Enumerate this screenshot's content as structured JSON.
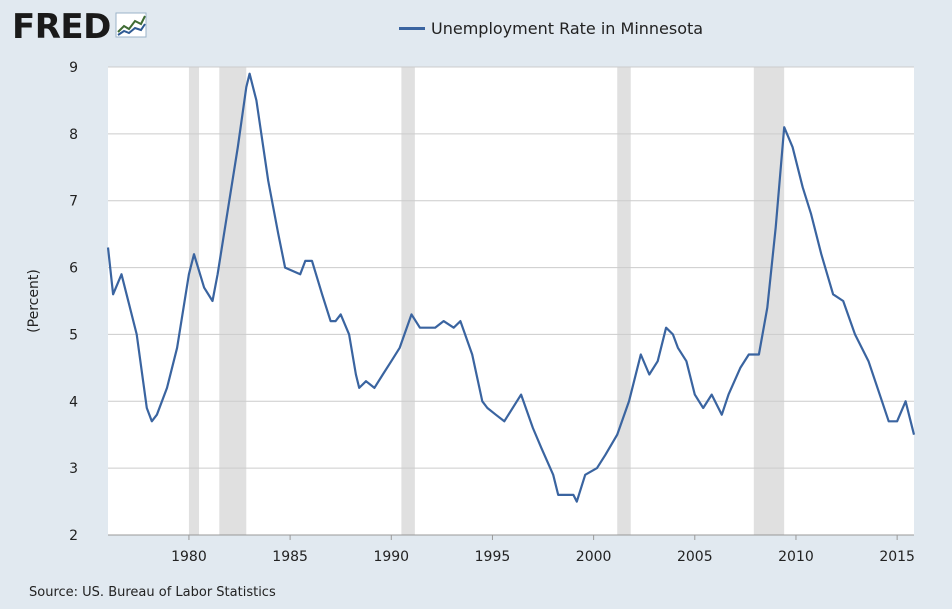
{
  "logo": {
    "text": "FRED",
    "icon": "fred-line-chart-icon"
  },
  "source": "Source: US. Bureau of Labor Statistics",
  "colors": {
    "series": "#3a64a0",
    "recession": "#e0e0e0",
    "grid": "#cccccc",
    "background": "#e1e9f0",
    "plot": "#ffffff"
  },
  "chart_data": {
    "type": "line",
    "title": "",
    "xlabel": "",
    "ylabel": "(Percent)",
    "ylim": [
      2,
      9
    ],
    "xlim": [
      "1976-01",
      "2015-11"
    ],
    "yticks": [
      2,
      3,
      4,
      5,
      6,
      7,
      8,
      9
    ],
    "xticks": [
      1980,
      1985,
      1990,
      1995,
      2000,
      2005,
      2010,
      2015
    ],
    "grid": "horizontal",
    "legend_position": "top",
    "recessions": [
      [
        "1980-01",
        "1980-07"
      ],
      [
        "1981-07",
        "1982-11"
      ],
      [
        "1990-07",
        "1991-03"
      ],
      [
        "2001-03",
        "2001-11"
      ],
      [
        "2007-12",
        "2009-06"
      ]
    ],
    "series": [
      {
        "name": "Unemployment Rate in Minnesota",
        "points": [
          [
            "1976-01",
            6.3
          ],
          [
            "1976-04",
            5.6
          ],
          [
            "1976-09",
            5.9
          ],
          [
            "1977-06",
            5.0
          ],
          [
            "1977-12",
            3.9
          ],
          [
            "1978-03",
            3.7
          ],
          [
            "1978-06",
            3.8
          ],
          [
            "1978-12",
            4.2
          ],
          [
            "1979-06",
            4.8
          ],
          [
            "1980-01",
            5.9
          ],
          [
            "1980-04",
            6.2
          ],
          [
            "1980-10",
            5.7
          ],
          [
            "1981-03",
            5.5
          ],
          [
            "1981-06",
            5.9
          ],
          [
            "1982-06",
            7.8
          ],
          [
            "1982-11",
            8.7
          ],
          [
            "1983-01",
            8.9
          ],
          [
            "1983-05",
            8.5
          ],
          [
            "1983-12",
            7.3
          ],
          [
            "1984-06",
            6.5
          ],
          [
            "1984-10",
            6.0
          ],
          [
            "1985-07",
            5.9
          ],
          [
            "1985-10",
            6.1
          ],
          [
            "1986-02",
            6.1
          ],
          [
            "1986-08",
            5.6
          ],
          [
            "1987-01",
            5.2
          ],
          [
            "1987-04",
            5.2
          ],
          [
            "1987-07",
            5.3
          ],
          [
            "1987-12",
            5.0
          ],
          [
            "1988-04",
            4.4
          ],
          [
            "1988-06",
            4.2
          ],
          [
            "1988-10",
            4.3
          ],
          [
            "1989-03",
            4.2
          ],
          [
            "1989-08",
            4.4
          ],
          [
            "1990-01",
            4.6
          ],
          [
            "1990-06",
            4.8
          ],
          [
            "1991-01",
            5.3
          ],
          [
            "1991-06",
            5.1
          ],
          [
            "1992-03",
            5.1
          ],
          [
            "1992-08",
            5.2
          ],
          [
            "1993-02",
            5.1
          ],
          [
            "1993-06",
            5.2
          ],
          [
            "1994-01",
            4.7
          ],
          [
            "1994-07",
            4.0
          ],
          [
            "1994-10",
            3.9
          ],
          [
            "1995-03",
            3.8
          ],
          [
            "1995-08",
            3.7
          ],
          [
            "1996-06",
            4.1
          ],
          [
            "1997-01",
            3.6
          ],
          [
            "1997-06",
            3.3
          ],
          [
            "1998-01",
            2.9
          ],
          [
            "1998-04",
            2.6
          ],
          [
            "1998-08",
            2.6
          ],
          [
            "1999-01",
            2.6
          ],
          [
            "1999-03",
            2.5
          ],
          [
            "1999-08",
            2.9
          ],
          [
            "2000-03",
            3.0
          ],
          [
            "2000-08",
            3.2
          ],
          [
            "2001-03",
            3.5
          ],
          [
            "2001-10",
            4.0
          ],
          [
            "2002-05",
            4.7
          ],
          [
            "2002-10",
            4.4
          ],
          [
            "2003-03",
            4.6
          ],
          [
            "2003-08",
            5.1
          ],
          [
            "2003-12",
            5.0
          ],
          [
            "2004-03",
            4.8
          ],
          [
            "2004-08",
            4.6
          ],
          [
            "2005-01",
            4.1
          ],
          [
            "2005-06",
            3.9
          ],
          [
            "2005-11",
            4.1
          ],
          [
            "2006-05",
            3.8
          ],
          [
            "2006-09",
            4.1
          ],
          [
            "2007-04",
            4.5
          ],
          [
            "2007-09",
            4.7
          ],
          [
            "2008-03",
            4.7
          ],
          [
            "2008-08",
            5.4
          ],
          [
            "2009-01",
            6.6
          ],
          [
            "2009-06",
            8.1
          ],
          [
            "2009-11",
            7.8
          ],
          [
            "2010-05",
            7.2
          ],
          [
            "2010-10",
            6.8
          ],
          [
            "2011-04",
            6.2
          ],
          [
            "2011-11",
            5.6
          ],
          [
            "2012-05",
            5.5
          ],
          [
            "2012-12",
            5.0
          ],
          [
            "2013-08",
            4.6
          ],
          [
            "2014-04",
            4.0
          ],
          [
            "2014-08",
            3.7
          ],
          [
            "2015-01",
            3.7
          ],
          [
            "2015-06",
            4.0
          ],
          [
            "2015-11",
            3.5
          ]
        ]
      }
    ]
  }
}
